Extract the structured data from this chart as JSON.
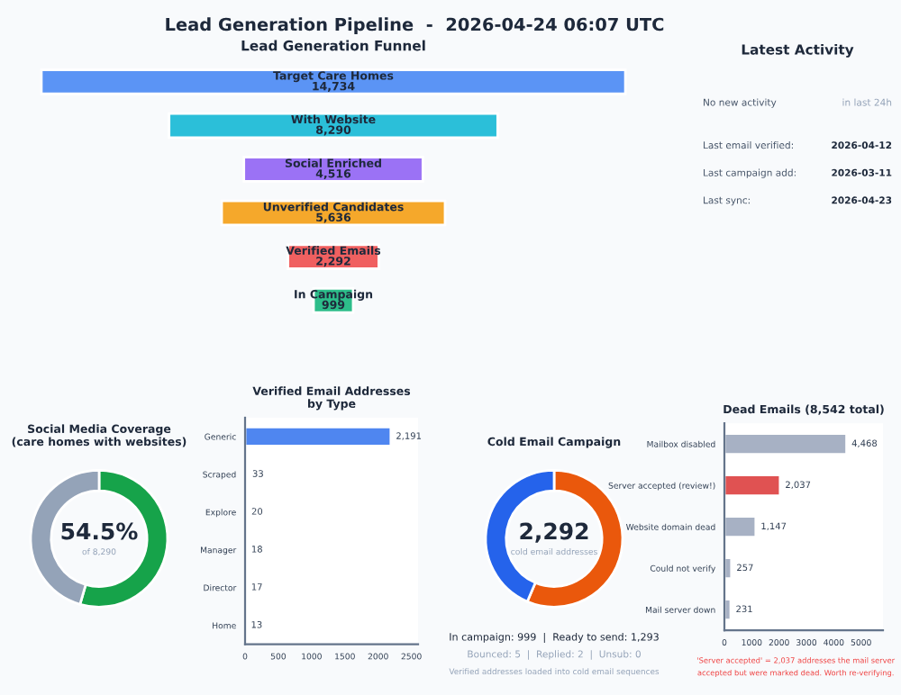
{
  "chart_data": [
    {
      "type": "other",
      "title": "Lead Generation Pipeline  -  2026-04-24 06:07 UTC"
    },
    {
      "type": "other",
      "title": "Lead Generation Funnel",
      "categories": [
        "Target Care Homes",
        "With Website",
        "Social Enriched",
        "Unverified Candidates",
        "Verified Emails",
        "In Campaign"
      ],
      "values": [
        14734,
        8290,
        4516,
        5636,
        2292,
        999
      ],
      "colors": [
        "#5b94f5",
        "#2bbfd9",
        "#9b72f5",
        "#f5a82b",
        "#f06060",
        "#2dbd8a"
      ],
      "value_labels": [
        "14,734",
        "8,290",
        "4,516",
        "5,636",
        "2,292",
        "999"
      ]
    },
    {
      "type": "other",
      "title": "Latest Activity",
      "annotations": [
        "No new activity",
        "in last 24h",
        "Last email verified:",
        "2026-04-12",
        "Last campaign add:",
        "2026-03-11",
        "Last sync:",
        "2026-04-23"
      ]
    },
    {
      "type": "donut",
      "title": "Social Media Coverage\n(care homes with websites)",
      "categories": [
        null,
        null
      ],
      "values": [
        54.5,
        45.5
      ],
      "colors": [
        "#16a34a",
        "#94a3b8"
      ],
      "annotations": [
        "54.5%",
        "of 8,290"
      ]
    },
    {
      "type": "bar",
      "orientation": "horizontal",
      "title": "Verified Email Addresses\nby Type",
      "categories": [
        "Generic",
        "Scraped",
        "Explore",
        "Manager",
        "Director",
        "Home"
      ],
      "values": [
        2191,
        33,
        20,
        18,
        17,
        13
      ],
      "value_labels": [
        "2,191",
        "33",
        "20",
        "18",
        "17",
        "13"
      ],
      "colors": [
        "#4f86f0",
        "#4f86f0",
        "#4f86f0",
        "#4f86f0",
        "#4f86f0",
        "#4f86f0"
      ],
      "xlim": [
        0,
        2600
      ],
      "xticks": [
        0,
        500,
        1000,
        1500,
        2000,
        2500
      ]
    },
    {
      "type": "donut",
      "title": "Cold Email Campaign",
      "categories": [
        null,
        null
      ],
      "values": [
        56.4,
        43.6
      ],
      "colors": [
        "#ea580c",
        "#2563eb"
      ],
      "annotations": [
        "2,292",
        "cold email addresses",
        "In campaign: 999  |  Ready to send: 1,293",
        "Bounced: 5  |  Replied: 2  |  Unsub: 0",
        "Verified addresses loaded into cold email sequences"
      ]
    },
    {
      "type": "bar",
      "orientation": "horizontal",
      "title": "Dead Emails (8,542 total)",
      "categories": [
        "Mailbox disabled",
        "Server accepted (review!)",
        "Website domain dead",
        "Could not verify",
        "Mail server down"
      ],
      "values": [
        4468,
        2037,
        1147,
        257,
        231
      ],
      "value_labels": [
        "4,468",
        "2,037",
        "1,147",
        "257",
        "231"
      ],
      "colors": [
        "#a7b1c4",
        "#e05252",
        "#a7b1c4",
        "#a7b1c4",
        "#a7b1c4"
      ],
      "xlim": [
        0,
        5800
      ],
      "xticks": [
        0,
        1000,
        2000,
        3000,
        4000,
        5000
      ],
      "annotations": [
        "'Server accepted' = 2,037 addresses the mail server\naccepted but were marked dead. Worth re-verifying."
      ]
    }
  ]
}
